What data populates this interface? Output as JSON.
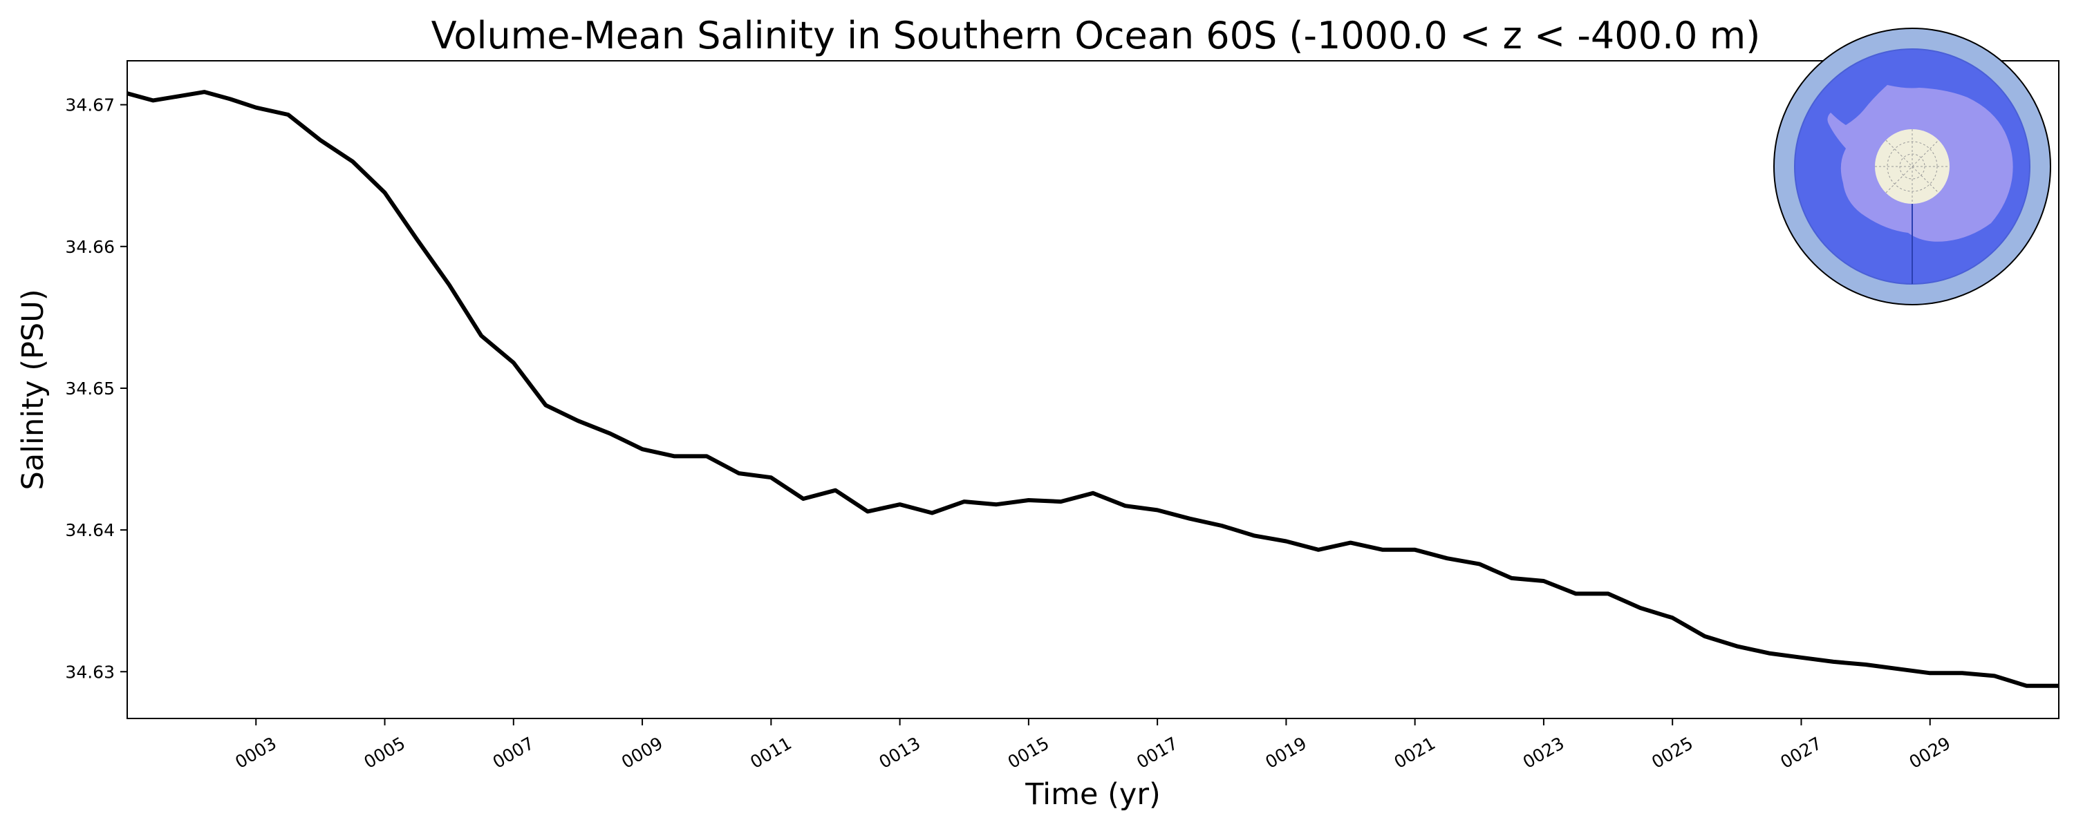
{
  "chart_data": {
    "type": "line",
    "title": "Volume-Mean Salinity in Southern Ocean 60S (-1000.0 < z < -400.0 m)",
    "xlabel": "Time (yr)",
    "ylabel": "Salinity (PSU)",
    "xlim": [
      1.0,
      31.0
    ],
    "ylim": [
      34.6267,
      34.6731
    ],
    "yticks": [
      34.63,
      34.64,
      34.65,
      34.66,
      34.67
    ],
    "ytick_labels": [
      "34.63",
      "34.64",
      "34.65",
      "34.66",
      "34.67"
    ],
    "xticks": [
      3,
      5,
      7,
      9,
      11,
      13,
      15,
      17,
      19,
      21,
      23,
      25,
      27,
      29
    ],
    "xtick_labels": [
      "0003",
      "0005",
      "0007",
      "0009",
      "0011",
      "0013",
      "0015",
      "0017",
      "0019",
      "0021",
      "0023",
      "0025",
      "0027",
      "0029"
    ],
    "grid": false,
    "inset": "polar map of the Southern Ocean south of 60S with Antarctica, top-right",
    "series": [
      {
        "name": "Salinity",
        "color": "#000000",
        "x": [
          1.0,
          1.4,
          1.8,
          2.2,
          2.6,
          3.0,
          3.5,
          4.0,
          4.5,
          5.0,
          5.5,
          6.0,
          6.5,
          7.0,
          7.5,
          8.0,
          8.5,
          9.0,
          9.5,
          10.0,
          10.5,
          11.0,
          11.5,
          12.0,
          12.5,
          13.0,
          13.5,
          14.0,
          14.5,
          15.0,
          15.5,
          16.0,
          16.5,
          17.0,
          17.5,
          18.0,
          18.5,
          19.0,
          19.5,
          20.0,
          20.5,
          21.0,
          21.5,
          22.0,
          22.5,
          23.0,
          23.5,
          24.0,
          24.5,
          25.0,
          25.5,
          26.0,
          26.5,
          27.0,
          27.5,
          28.0,
          28.5,
          29.0,
          29.5,
          30.0,
          30.5,
          31.0
        ],
        "values": [
          34.6708,
          34.6703,
          34.6706,
          34.6709,
          34.6704,
          34.6698,
          34.6693,
          34.6675,
          34.666,
          34.6638,
          34.6605,
          34.6573,
          34.6537,
          34.6518,
          34.6488,
          34.6477,
          34.6468,
          34.6457,
          34.6452,
          34.6452,
          34.644,
          34.6437,
          34.6422,
          34.6428,
          34.6413,
          34.6418,
          34.6412,
          34.642,
          34.6418,
          34.6421,
          34.642,
          34.6426,
          34.6417,
          34.6414,
          34.6408,
          34.6403,
          34.6396,
          34.6392,
          34.6386,
          34.6391,
          34.6386,
          34.6386,
          34.638,
          34.6376,
          34.6366,
          34.6364,
          34.6355,
          34.6355,
          34.6345,
          34.6338,
          34.6325,
          34.6318,
          34.6313,
          34.631,
          34.6307,
          34.6305,
          34.6302,
          34.6299,
          34.6299,
          34.6297,
          34.629,
          34.629
        ]
      }
    ]
  }
}
